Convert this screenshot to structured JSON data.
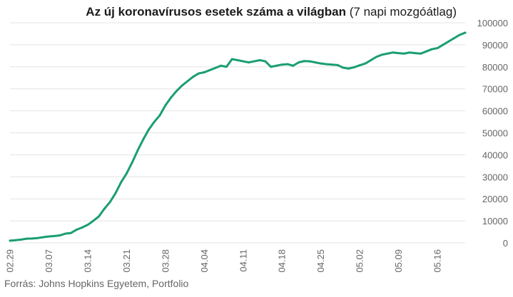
{
  "title_main": "Az új koronavírusos esetek száma a világban",
  "title_sub": "(7 napi mozgóátlag)",
  "source": "Forrás: Johns Hopkins Egyetem, Portfolio",
  "colors": {
    "line": "#1a9e72",
    "grid": "#e3e3e3",
    "text": "#666666"
  },
  "chart_data": {
    "type": "line",
    "title": "Az új koronavírusos esetek száma a világban (7 napi mozgóátlag)",
    "xlabel": "",
    "ylabel": "",
    "ylim": [
      0,
      100000
    ],
    "grid": true,
    "y_ticks": [
      "100000",
      "90000",
      "80000",
      "70000",
      "60000",
      "50000",
      "40000",
      "30000",
      "20000",
      "10000",
      "0"
    ],
    "x_ticks": [
      "02.29",
      "03.07",
      "03.14",
      "03.21",
      "03.28",
      "04.04",
      "04.11",
      "04.18",
      "04.25",
      "05.02",
      "05.09",
      "05.16"
    ],
    "x": [
      "02.29",
      "03.01",
      "03.02",
      "03.03",
      "03.04",
      "03.05",
      "03.06",
      "03.07",
      "03.08",
      "03.09",
      "03.10",
      "03.11",
      "03.12",
      "03.13",
      "03.14",
      "03.15",
      "03.16",
      "03.17",
      "03.18",
      "03.19",
      "03.20",
      "03.21",
      "03.22",
      "03.23",
      "03.24",
      "03.25",
      "03.26",
      "03.27",
      "03.28",
      "03.29",
      "03.30",
      "03.31",
      "04.01",
      "04.02",
      "04.03",
      "04.04",
      "04.05",
      "04.06",
      "04.07",
      "04.08",
      "04.09",
      "04.10",
      "04.11",
      "04.12",
      "04.13",
      "04.14",
      "04.15",
      "04.16",
      "04.17",
      "04.18",
      "04.19",
      "04.20",
      "04.21",
      "04.22",
      "04.23",
      "04.24",
      "04.25",
      "04.26",
      "04.27",
      "04.28",
      "04.29",
      "04.30",
      "05.01",
      "05.02",
      "05.03",
      "05.04",
      "05.05",
      "05.06",
      "05.07",
      "05.08",
      "05.09",
      "05.10",
      "05.11",
      "05.12",
      "05.13",
      "05.14",
      "05.15",
      "05.16",
      "05.17",
      "05.18",
      "05.19",
      "05.20",
      "05.21"
    ],
    "series": [
      {
        "values": [
          1000,
          1200,
          1500,
          1900,
          2000,
          2200,
          2600,
          2900,
          3100,
          3400,
          4200,
          4500,
          6000,
          7000,
          8200,
          10000,
          12000,
          15500,
          18500,
          22500,
          27500,
          31500,
          36500,
          42000,
          47000,
          51500,
          55000,
          58000,
          62500,
          66000,
          69000,
          71500,
          73500,
          75500,
          77000,
          77500,
          78500,
          79500,
          80500,
          80000,
          83500,
          83000,
          82500,
          82000,
          82500,
          83000,
          82500,
          80000,
          80500,
          81000,
          81200,
          80500,
          82000,
          82600,
          82500,
          82000,
          81500,
          81200,
          81000,
          80800,
          79600,
          79200,
          79800,
          80700,
          81500,
          83000,
          84500,
          85500,
          86000,
          86500,
          86200,
          86000,
          86500,
          86200,
          86000,
          87000,
          88000,
          88500,
          90000,
          91500,
          93000,
          94500,
          95500
        ]
      }
    ]
  }
}
